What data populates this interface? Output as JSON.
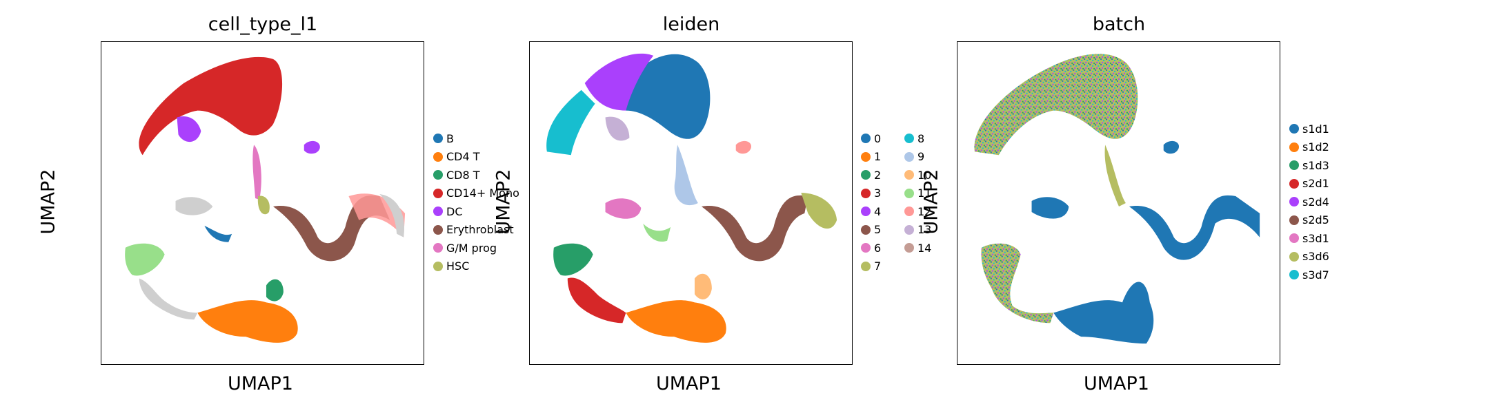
{
  "chart_data": [
    {
      "type": "scatter",
      "title": "cell_type_l1",
      "xlabel": "UMAP1",
      "ylabel": "UMAP2",
      "legend_position": "right",
      "grid": false,
      "legend": [
        {
          "label": "B",
          "color": "#1f77b4"
        },
        {
          "label": "CD4 T",
          "color": "#ff7f0e"
        },
        {
          "label": "CD8 T",
          "color": "#279e68"
        },
        {
          "label": "CD14+ Mono",
          "color": "#d62728"
        },
        {
          "label": "DC",
          "color": "#aa40fc"
        },
        {
          "label": "Erythroblast",
          "color": "#8c564b"
        },
        {
          "label": "G/M prog",
          "color": "#e377c2"
        },
        {
          "label": "HSC",
          "color": "#b5bd61"
        }
      ]
    },
    {
      "type": "scatter",
      "title": "leiden",
      "xlabel": "UMAP1",
      "ylabel": "UMAP2",
      "legend_position": "right (two columns)",
      "grid": false,
      "legend": [
        {
          "label": "0",
          "color": "#1f77b4"
        },
        {
          "label": "1",
          "color": "#ff7f0e"
        },
        {
          "label": "2",
          "color": "#279e68"
        },
        {
          "label": "3",
          "color": "#d62728"
        },
        {
          "label": "4",
          "color": "#aa40fc"
        },
        {
          "label": "5",
          "color": "#8c564b"
        },
        {
          "label": "6",
          "color": "#e377c2"
        },
        {
          "label": "7",
          "color": "#b5bd61"
        },
        {
          "label": "8",
          "color": "#17becf"
        },
        {
          "label": "9",
          "color": "#aec7e8"
        },
        {
          "label": "10",
          "color": "#ffbb78"
        },
        {
          "label": "11",
          "color": "#98df8a"
        },
        {
          "label": "12",
          "color": "#ff9896"
        },
        {
          "label": "13",
          "color": "#c5b0d5"
        },
        {
          "label": "14",
          "color": "#c49c94"
        }
      ]
    },
    {
      "type": "scatter",
      "title": "batch",
      "xlabel": "UMAP1",
      "ylabel": "UMAP2",
      "legend_position": "right",
      "grid": false,
      "legend": [
        {
          "label": "s1d1",
          "color": "#1f77b4"
        },
        {
          "label": "s1d2",
          "color": "#ff7f0e"
        },
        {
          "label": "s1d3",
          "color": "#279e68"
        },
        {
          "label": "s2d1",
          "color": "#d62728"
        },
        {
          "label": "s2d4",
          "color": "#aa40fc"
        },
        {
          "label": "s2d5",
          "color": "#8c564b"
        },
        {
          "label": "s3d1",
          "color": "#e377c2"
        },
        {
          "label": "s3d6",
          "color": "#b5bd61"
        },
        {
          "label": "s3d7",
          "color": "#17becf"
        }
      ]
    }
  ]
}
